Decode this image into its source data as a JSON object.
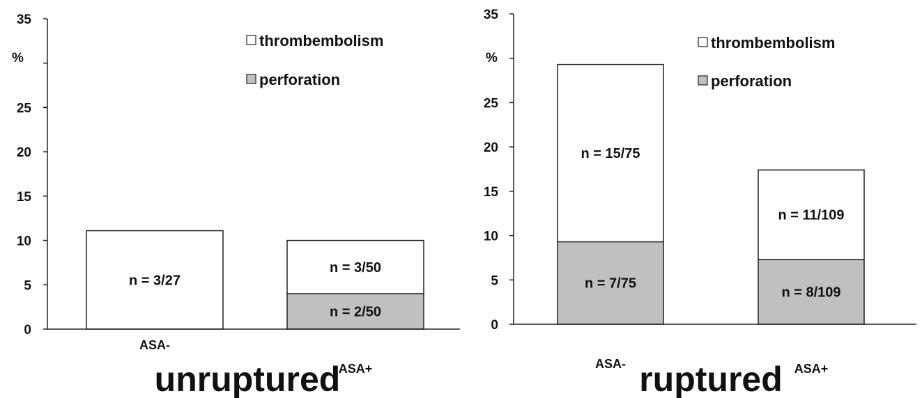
{
  "chart_data": [
    {
      "type": "bar",
      "stacked": true,
      "title": "unruptured",
      "ylabel": "%",
      "ylim": [
        0,
        35
      ],
      "y_ticks": [
        "0",
        "5",
        "10",
        "15",
        "20",
        "25",
        "",
        "35"
      ],
      "categories": [
        "ASA-",
        "ASA+"
      ],
      "legend": {
        "position": "top-right",
        "entries": [
          {
            "name": "thrombembolism",
            "color": "#ffffff"
          },
          {
            "name": "perforation",
            "color": "#c0c0c0"
          }
        ]
      },
      "series": [
        {
          "name": "perforation",
          "color": "#c0c0c0",
          "values": [
            0,
            4.0
          ],
          "labels": [
            "",
            "n = 2/50"
          ]
        },
        {
          "name": "thrombembolism",
          "color": "#ffffff",
          "values": [
            11.1,
            6.0
          ],
          "labels": [
            "n = 3/27",
            "n = 3/50"
          ]
        }
      ],
      "grid": false
    },
    {
      "type": "bar",
      "stacked": true,
      "title": "ruptured",
      "ylabel": "%",
      "ylim": [
        0,
        35
      ],
      "y_ticks": [
        "0",
        "5",
        "10",
        "15",
        "20",
        "25",
        "",
        "35"
      ],
      "categories": [
        "ASA-",
        "ASA+"
      ],
      "legend": {
        "position": "top-right",
        "entries": [
          {
            "name": "thrombembolism",
            "color": "#ffffff"
          },
          {
            "name": "perforation",
            "color": "#c0c0c0"
          }
        ]
      },
      "series": [
        {
          "name": "perforation",
          "color": "#c0c0c0",
          "values": [
            9.3,
            7.3
          ],
          "labels": [
            "n = 7/75",
            "n = 8/109"
          ]
        },
        {
          "name": "thrombembolism",
          "color": "#ffffff",
          "values": [
            20.0,
            10.1
          ],
          "labels": [
            "n = 15/75",
            "n = 11/109"
          ]
        }
      ],
      "grid": false
    }
  ]
}
